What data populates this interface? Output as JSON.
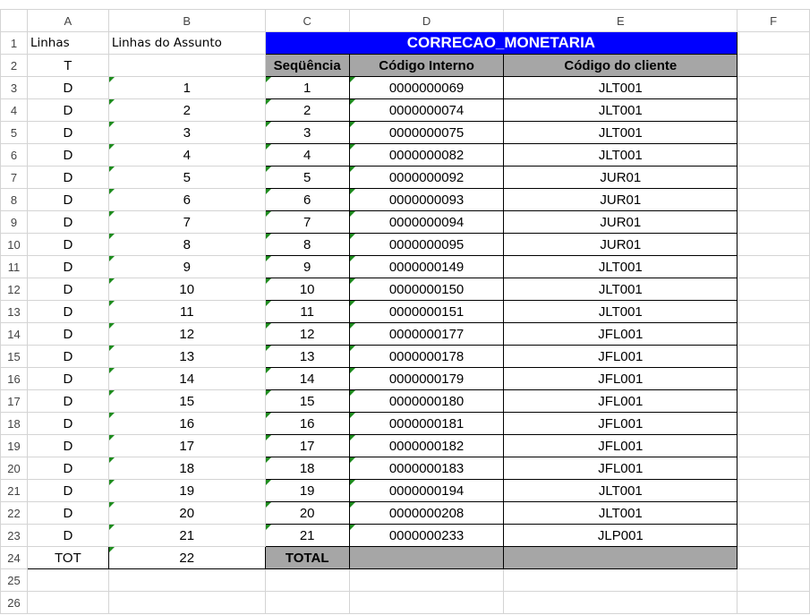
{
  "columns": [
    "A",
    "B",
    "C",
    "D",
    "E",
    "F"
  ],
  "headers": {
    "A1": "Linhas",
    "B1": "Linhas do Assunto",
    "title": "CORRECAO_MONETARIA",
    "A2": "T",
    "C2": "Seqüência",
    "D2": "Código Interno",
    "E2": "Código do cliente"
  },
  "rows": [
    {
      "a": "D",
      "b": "1",
      "c": "1",
      "d": "0000000069",
      "e": "JLT001"
    },
    {
      "a": "D",
      "b": "2",
      "c": "2",
      "d": "0000000074",
      "e": "JLT001"
    },
    {
      "a": "D",
      "b": "3",
      "c": "3",
      "d": "0000000075",
      "e": "JLT001"
    },
    {
      "a": "D",
      "b": "4",
      "c": "4",
      "d": "0000000082",
      "e": "JLT001"
    },
    {
      "a": "D",
      "b": "5",
      "c": "5",
      "d": "0000000092",
      "e": "JUR01"
    },
    {
      "a": "D",
      "b": "6",
      "c": "6",
      "d": "0000000093",
      "e": "JUR01"
    },
    {
      "a": "D",
      "b": "7",
      "c": "7",
      "d": "0000000094",
      "e": "JUR01"
    },
    {
      "a": "D",
      "b": "8",
      "c": "8",
      "d": "0000000095",
      "e": "JUR01"
    },
    {
      "a": "D",
      "b": "9",
      "c": "9",
      "d": "0000000149",
      "e": "JLT001"
    },
    {
      "a": "D",
      "b": "10",
      "c": "10",
      "d": "0000000150",
      "e": "JLT001"
    },
    {
      "a": "D",
      "b": "11",
      "c": "11",
      "d": "0000000151",
      "e": "JLT001"
    },
    {
      "a": "D",
      "b": "12",
      "c": "12",
      "d": "0000000177",
      "e": "JFL001"
    },
    {
      "a": "D",
      "b": "13",
      "c": "13",
      "d": "0000000178",
      "e": "JFL001"
    },
    {
      "a": "D",
      "b": "14",
      "c": "14",
      "d": "0000000179",
      "e": "JFL001"
    },
    {
      "a": "D",
      "b": "15",
      "c": "15",
      "d": "0000000180",
      "e": "JFL001"
    },
    {
      "a": "D",
      "b": "16",
      "c": "16",
      "d": "0000000181",
      "e": "JFL001"
    },
    {
      "a": "D",
      "b": "17",
      "c": "17",
      "d": "0000000182",
      "e": "JFL001"
    },
    {
      "a": "D",
      "b": "18",
      "c": "18",
      "d": "0000000183",
      "e": "JFL001"
    },
    {
      "a": "D",
      "b": "19",
      "c": "19",
      "d": "0000000194",
      "e": "JLT001"
    },
    {
      "a": "D",
      "b": "20",
      "c": "20",
      "d": "0000000208",
      "e": "JLT001"
    },
    {
      "a": "D",
      "b": "21",
      "c": "21",
      "d": "0000000233",
      "e": "JLP001"
    }
  ],
  "total": {
    "a": "TOT",
    "b": "22",
    "c": "TOTAL"
  },
  "row_numbers": [
    "1",
    "2",
    "3",
    "4",
    "5",
    "6",
    "7",
    "8",
    "9",
    "10",
    "11",
    "12",
    "13",
    "14",
    "15",
    "16",
    "17",
    "18",
    "19",
    "20",
    "21",
    "22",
    "23",
    "24",
    "25",
    "26"
  ],
  "colors": {
    "title_bg": "#0000FF",
    "header_bg": "#A6A6A6",
    "error_indicator": "#1E8C1E"
  }
}
